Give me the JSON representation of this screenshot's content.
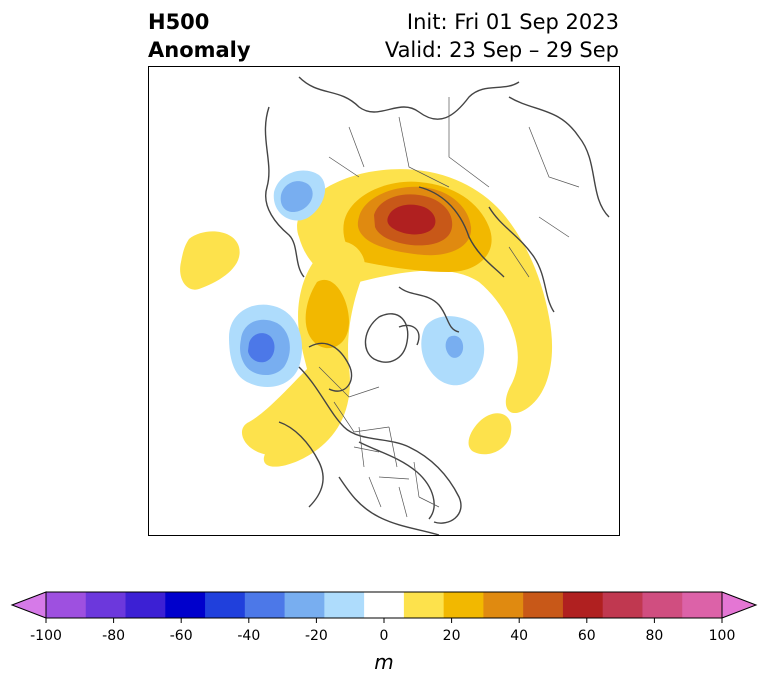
{
  "header": {
    "title_line1": "H500",
    "title_line2": "Anomaly",
    "init": "Init: Fri 01 Sep 2023",
    "valid": "Valid: 23 Sep – 29 Sep"
  },
  "colorbar": {
    "unit": "m",
    "tick_labels": [
      "-100",
      "-80",
      "-60",
      "-40",
      "-20",
      "0",
      "20",
      "40",
      "60",
      "80",
      "100"
    ],
    "levels": [
      -100,
      -90,
      -80,
      -70,
      -60,
      -50,
      -40,
      -30,
      -20,
      -10,
      10,
      20,
      30,
      40,
      50,
      60,
      70,
      80,
      90,
      100
    ],
    "colors": [
      "#d67ae8",
      "#9e50e0",
      "#6c38dc",
      "#3c20d4",
      "#0000cc",
      "#2040dc",
      "#4c78e8",
      "#78aef0",
      "#aedcfc",
      "#ffffff",
      "#fde24c",
      "#f2b800",
      "#e08a10",
      "#c85818",
      "#b02020",
      "#c03850",
      "#d04e80",
      "#dc62a8",
      "#e476d4"
    ]
  },
  "map": {
    "projection": "north polar stereographic",
    "anomalies": [
      {
        "region": "Scandinavia / Western Russia",
        "sign": "positive",
        "max_m": 60
      },
      {
        "region": "North Atlantic / Greenland",
        "sign": "positive",
        "max_m": 30
      },
      {
        "region": "Western North America",
        "sign": "positive",
        "max_m": 20
      },
      {
        "region": "Gulf of Alaska / NE Pacific",
        "sign": "negative",
        "min_m": -40
      },
      {
        "region": "East Siberia",
        "sign": "negative",
        "min_m": -30
      },
      {
        "region": "Central Asia",
        "sign": "negative",
        "min_m": -20
      }
    ]
  }
}
